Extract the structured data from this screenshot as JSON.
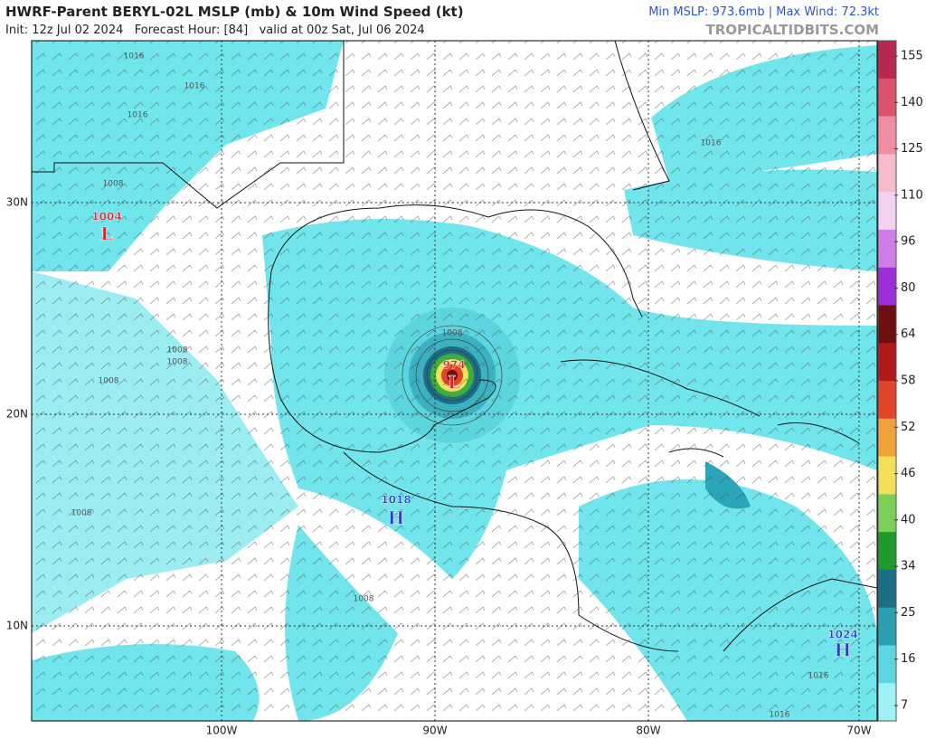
{
  "header": {
    "title": "HWRF-Parent BERYL-02L MSLP (mb) & 10m Wind Speed (kt)",
    "subtitle": "Init: 12z Jul 02 2024   Forecast Hour: [84]   valid at 00z Sat, Jul 06 2024",
    "stats": "Min MSLP: 973.6mb | Max Wind: 72.3kt",
    "credit": "TROPICALTIDBITS.COM"
  },
  "map": {
    "lat_labels": [
      "30N",
      "20N",
      "10N"
    ],
    "lon_labels": [
      "100W",
      "90W",
      "80W",
      "70W"
    ],
    "centers": [
      {
        "pressure": "1004",
        "symbol": "L",
        "color": "#d8262b"
      },
      {
        "pressure": "974",
        "symbol": "L",
        "color": "#d8262b"
      },
      {
        "pressure": "1018",
        "symbol": "H",
        "color": "#2340c8"
      },
      {
        "pressure": "1024",
        "symbol": "H",
        "color": "#2340c8"
      }
    ],
    "isobar_labels": [
      "1016",
      "1016",
      "1016",
      "1016",
      "1016",
      "1016",
      "1008",
      "1008",
      "1008",
      "1008",
      "1008",
      "1008",
      "1008"
    ],
    "colorbar": {
      "labels": [
        "155",
        "140",
        "125",
        "110",
        "96",
        "80",
        "64",
        "58",
        "52",
        "46",
        "40",
        "34",
        "25",
        "16",
        "7"
      ],
      "colors": [
        "#b8274f",
        "#d9536f",
        "#ee8ea0",
        "#f5bccc",
        "#f2d2ee",
        "#cf7ee8",
        "#9a2fd8",
        "#6e0f12",
        "#b01a1a",
        "#e0442a",
        "#f0a23a",
        "#f2e05a",
        "#7cd05a",
        "#1e9a2e",
        "#1b6e86",
        "#2a9fb0",
        "#5cd6e0",
        "#9ef2f5"
      ]
    }
  }
}
